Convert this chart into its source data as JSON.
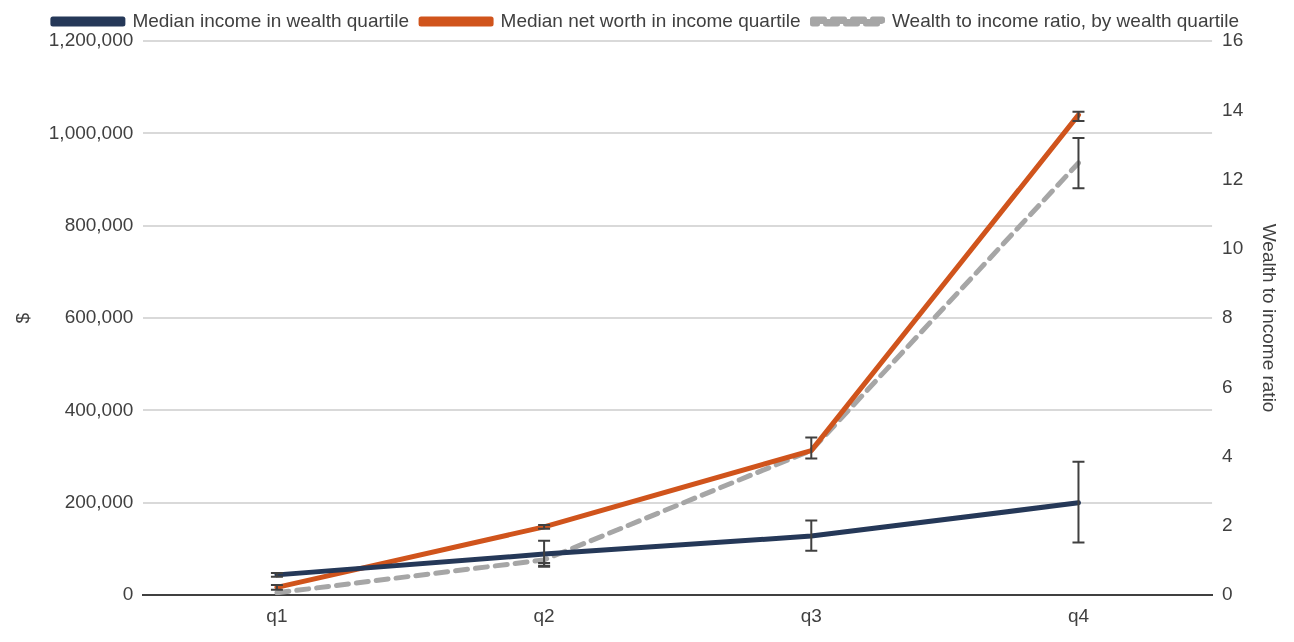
{
  "chart_data": {
    "type": "line",
    "categories": [
      "q1",
      "q2",
      "q3",
      "q4"
    ],
    "ylabel": "$",
    "y2label": "Wealth to income ratio",
    "ylim": [
      0,
      1200000
    ],
    "yticks": [
      0,
      {
        "value": 200000,
        "label": "200,000"
      },
      {
        "value": 400000,
        "label": "400,000"
      },
      {
        "value": 600000,
        "label": "600,000"
      },
      {
        "value": 800000,
        "label": "800,000"
      },
      {
        "value": 1000000,
        "label": "1,000,000"
      },
      {
        "value": 1200000,
        "label": "1,200,000"
      }
    ],
    "y2lim": [
      0,
      16
    ],
    "y2ticks": [
      0,
      2,
      4,
      6,
      8,
      10,
      12,
      14,
      16
    ],
    "grid": "y",
    "legend": "top",
    "marker": "none",
    "series": [
      {
        "name": "Median income in wealth quartile",
        "color": "#253858",
        "values": [
          44000,
          89000,
          128000,
          200000
        ],
        "errors": [
          [
            40000,
            48000
          ],
          [
            64000,
            118000
          ],
          [
            96000,
            162000
          ],
          [
            114000,
            289000
          ]
        ],
        "line_style": "solid"
      },
      {
        "name": "Median net worth in income quartile",
        "color": "#d0541c",
        "values": [
          17000,
          148000,
          313000,
          1040000
        ],
        "errors": [
          [
            12000,
            22000
          ],
          [
            144000,
            152000
          ],
          null,
          [
            1027000,
            1047000
          ]
        ],
        "line_style": "solid"
      },
      {
        "name": "Wealth to income ratio, by wealth quartile",
        "color": "#a6a6a6",
        "axis": "y2",
        "values": [
          0.07,
          1.02,
          4.18,
          12.48
        ],
        "errors": [
          null,
          [
            0.82,
            0.93
          ],
          [
            3.95,
            4.55
          ],
          [
            11.75,
            13.2
          ]
        ],
        "line_style": "dashed"
      }
    ]
  }
}
